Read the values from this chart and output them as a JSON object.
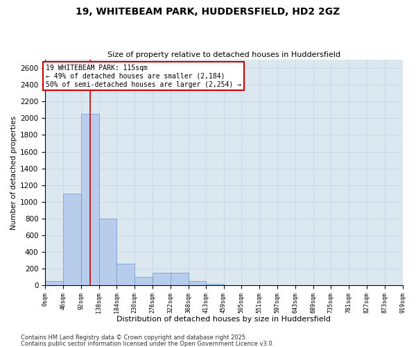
{
  "title1": "19, WHITEBEAM PARK, HUDDERSFIELD, HD2 2GZ",
  "title2": "Size of property relative to detached houses in Huddersfield",
  "xlabel": "Distribution of detached houses by size in Huddersfield",
  "ylabel": "Number of detached properties",
  "bin_edges": [
    0,
    46,
    92,
    138,
    184,
    230,
    276,
    322,
    368,
    413,
    459,
    505,
    551,
    597,
    643,
    689,
    735,
    781,
    827,
    873,
    919
  ],
  "bar_heights": [
    50,
    1100,
    2050,
    800,
    260,
    100,
    150,
    150,
    50,
    20,
    0,
    0,
    0,
    0,
    0,
    0,
    0,
    0,
    0,
    0
  ],
  "bar_color": "#b8ccec",
  "bar_edge_color": "#6699cc",
  "grid_color": "#c8d4e8",
  "background_color": "#dce8f0",
  "red_line_x": 115,
  "annotation_text": "19 WHITEBEAM PARK: 115sqm\n← 49% of detached houses are smaller (2,184)\n50% of semi-detached houses are larger (2,254) →",
  "annotation_box_color": "#ffffff",
  "annotation_box_edge": "#cc0000",
  "ylim": [
    0,
    2700
  ],
  "yticks": [
    0,
    200,
    400,
    600,
    800,
    1000,
    1200,
    1400,
    1600,
    1800,
    2000,
    2200,
    2400,
    2600
  ],
  "footer1": "Contains HM Land Registry data © Crown copyright and database right 2025.",
  "footer2": "Contains public sector information licensed under the Open Government Licence v3.0."
}
